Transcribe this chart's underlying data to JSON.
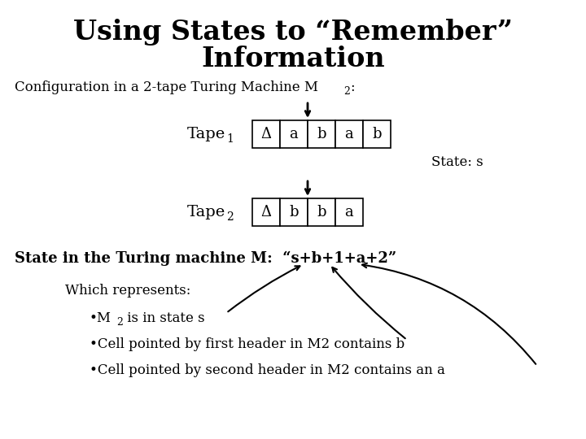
{
  "title_line1": "Using States to “Remember”",
  "title_line2": "Information",
  "subtitle": "Configuration in a 2-tape Turing Machine M",
  "tape1_cells": [
    "Δ",
    "a",
    "b",
    "a",
    "b"
  ],
  "tape2_cells": [
    "Δ",
    "b",
    "b",
    "a"
  ],
  "state_label": "State: s",
  "bg_color": "#ffffff",
  "text_color": "#000000"
}
